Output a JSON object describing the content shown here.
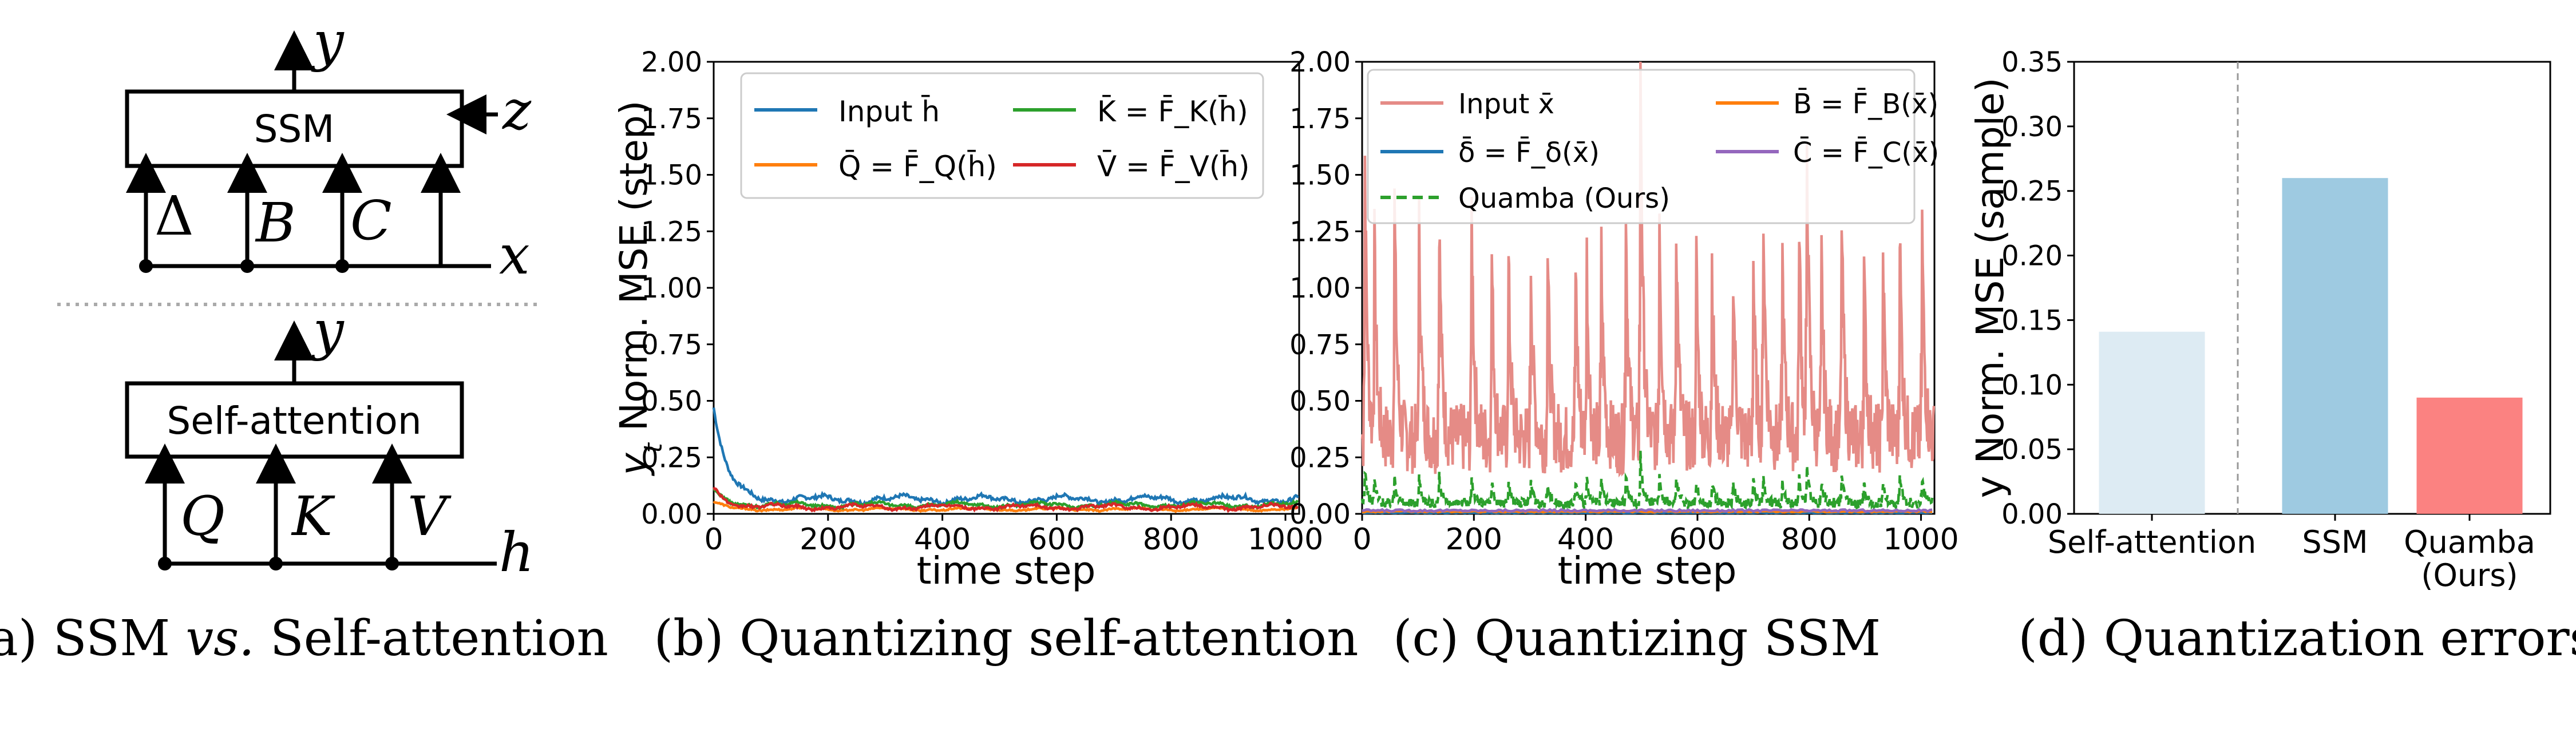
{
  "captions": {
    "a": "(a) SSM vs. Self-attention",
    "b": "(b) Quantizing self-attention",
    "c": "(c) Quantizing SSM",
    "d": "(d) Quantization errors"
  },
  "diagram": {
    "ssm_block": "SSM",
    "ssm_output": "y",
    "ssm_side_input": "z",
    "ssm_params": [
      "Δ",
      "B",
      "C"
    ],
    "ssm_input": "x",
    "attn_block": "Self-attention",
    "attn_output": "y",
    "attn_params": [
      "Q",
      "K",
      "V"
    ],
    "attn_input": "h"
  },
  "chart_data": [
    {
      "id": "b",
      "type": "line",
      "title": "(b) Quantizing self-attention",
      "xlabel": "time step",
      "ylabel": "y_t Norm. MSE (step)",
      "xlim": [
        0,
        1024
      ],
      "ylim": [
        0,
        2.0
      ],
      "xticks": [
        0,
        200,
        400,
        600,
        800,
        1000
      ],
      "yticks": [
        "0.00",
        "0.25",
        "0.50",
        "0.75",
        "1.00",
        "1.25",
        "1.50",
        "1.75",
        "2.00"
      ],
      "legend": "top",
      "series": [
        {
          "name": "Input h̄",
          "color": "#1f77b4",
          "pattern": "decay",
          "start": 0.47,
          "base": 0.065,
          "amp": 0.02
        },
        {
          "name": "Q̄ = F̄_Q(h̄)",
          "color": "#ff7f0e",
          "pattern": "decay",
          "start": 0.05,
          "base": 0.02,
          "amp": 0.008
        },
        {
          "name": "K̄ = F̄_K(h̄)",
          "color": "#2ca02c",
          "pattern": "decay",
          "start": 0.1,
          "base": 0.04,
          "amp": 0.014
        },
        {
          "name": "V̄ = F̄_V(h̄)",
          "color": "#d62728",
          "pattern": "decay",
          "start": 0.12,
          "base": 0.03,
          "amp": 0.014
        }
      ]
    },
    {
      "id": "c",
      "type": "line",
      "title": "(c) Quantizing SSM",
      "xlabel": "time step",
      "ylim": [
        0,
        2.0
      ],
      "xlim": [
        0,
        1024
      ],
      "xticks": [
        0,
        200,
        400,
        600,
        800,
        1000
      ],
      "yticks": [
        "0.00",
        "0.25",
        "0.50",
        "0.75",
        "1.00",
        "1.25",
        "1.50",
        "1.75",
        "2.00"
      ],
      "legend": "top",
      "spike_positions": [
        5,
        22,
        58,
        102,
        138,
        196,
        232,
        262,
        302,
        332,
        382,
        402,
        428,
        472,
        498,
        532,
        562,
        598,
        626,
        664,
        700,
        718,
        752,
        782,
        796,
        822,
        858,
        898,
        932,
        962,
        1002
      ],
      "spike_heights": [
        1.25,
        0.85,
        1.05,
        0.95,
        1.0,
        1.02,
        0.83,
        0.78,
        0.8,
        0.82,
        0.78,
        0.8,
        0.82,
        1.03,
        1.78,
        1.04,
        1.0,
        0.8,
        0.79,
        0.78,
        0.79,
        1.02,
        0.8,
        1.0,
        1.28,
        0.8,
        1.0,
        0.78,
        0.82,
        0.95,
        0.95
      ],
      "series": [
        {
          "name": "Input x̄",
          "color": "#e58b86",
          "pattern": "spiky",
          "base": 0.35,
          "amp": 1.0
        },
        {
          "name": "δ̄ = F̄_δ(x̄)",
          "color": "#1f77b4",
          "pattern": "flat",
          "base": 0.005
        },
        {
          "name": "Quamba (Ours)",
          "color": "#2ca02c",
          "pattern": "spiky",
          "dashed": true,
          "base": 0.05,
          "amp": 0.12
        },
        {
          "name": "B̄ = F̄_B(x̄)",
          "color": "#ff7f0e",
          "pattern": "flat",
          "base": 0.01
        },
        {
          "name": "C̄ = F̄_C(x̄)",
          "color": "#9467bd",
          "pattern": "flat",
          "base": 0.015
        }
      ]
    },
    {
      "id": "d",
      "type": "bar",
      "title": "(d) Quantization errors",
      "ylabel": "y Norm. MSE (sample)",
      "categories": [
        "Self-attention",
        "SSM",
        "Quamba\n(Ours)"
      ],
      "values": [
        0.141,
        0.26,
        0.09
      ],
      "colors": [
        "#ddebf3",
        "#9ecae1",
        "#fb8281"
      ],
      "ylim": [
        0,
        0.35
      ],
      "yticks": [
        "0.00",
        "0.05",
        "0.10",
        "0.15",
        "0.20",
        "0.25",
        "0.30",
        "0.35"
      ]
    }
  ]
}
